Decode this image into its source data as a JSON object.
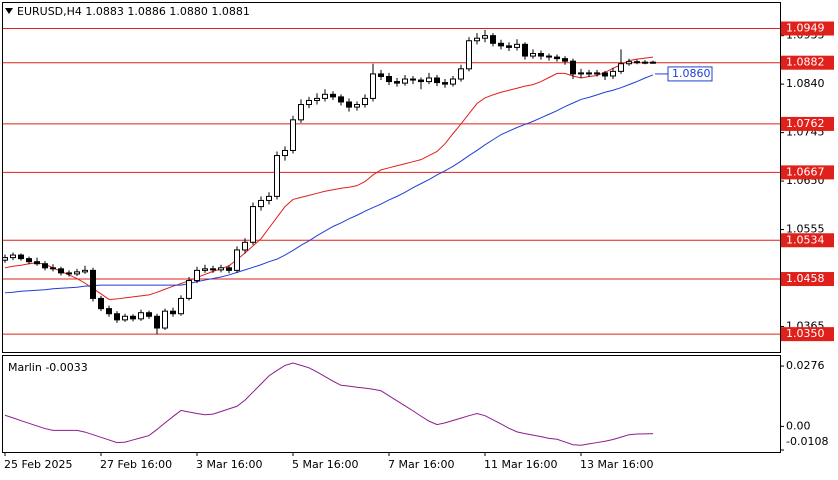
{
  "chart_data": [
    {
      "type": "candlestick",
      "title": "EURUSD,H4 1.0883 1.0886 1.0880 1.0881",
      "categories": [
        "25 Feb 2025",
        null,
        null,
        null,
        null,
        null,
        null,
        null,
        null,
        null,
        null,
        null,
        "27 Feb 16:00",
        null,
        null,
        null,
        null,
        null,
        null,
        null,
        null,
        null,
        null,
        null,
        "3 Mar 16:00",
        null,
        null,
        null,
        null,
        null,
        null,
        null,
        null,
        null,
        null,
        null,
        "5 Mar 16:00",
        null,
        null,
        null,
        null,
        null,
        null,
        null,
        null,
        null,
        null,
        null,
        "7 Mar 16:00",
        null,
        null,
        null,
        null,
        null,
        null,
        null,
        null,
        null,
        null,
        null,
        "11 Mar 16:00",
        null,
        null,
        null,
        null,
        null,
        null,
        null,
        null,
        null,
        null,
        null,
        "13 Mar 16:00",
        null,
        null,
        null,
        null,
        null,
        null,
        null,
        null,
        null
      ],
      "ohlc": [
        [
          1.0495,
          1.0506,
          1.049,
          1.05
        ],
        [
          1.05,
          1.051,
          1.0495,
          1.0505
        ],
        [
          1.0505,
          1.0508,
          1.0494,
          1.0498
        ],
        [
          1.0498,
          1.0502,
          1.0487,
          1.0492
        ],
        [
          1.0492,
          1.05,
          1.0484,
          1.0488
        ],
        [
          1.0488,
          1.0493,
          1.0475,
          1.048
        ],
        [
          1.048,
          1.0487,
          1.0473,
          1.0478
        ],
        [
          1.0478,
          1.0482,
          1.0465,
          1.047
        ],
        [
          1.047,
          1.0475,
          1.0463,
          1.0468
        ],
        [
          1.0468,
          1.0478,
          1.0464,
          1.0472
        ],
        [
          1.0472,
          1.0484,
          1.0468,
          1.0475
        ],
        [
          1.0475,
          1.048,
          1.0414,
          1.042
        ],
        [
          1.042,
          1.0425,
          1.0395,
          1.04
        ],
        [
          1.04,
          1.0406,
          1.0384,
          1.039
        ],
        [
          1.039,
          1.0395,
          1.0372,
          1.0378
        ],
        [
          1.0378,
          1.039,
          1.0374,
          1.0385
        ],
        [
          1.0385,
          1.0389,
          1.0375,
          1.038
        ],
        [
          1.038,
          1.0398,
          1.0376,
          1.0392
        ],
        [
          1.0392,
          1.0396,
          1.038,
          1.0385
        ],
        [
          1.0385,
          1.039,
          1.035,
          1.0362
        ],
        [
          1.0362,
          1.04,
          1.0358,
          1.0395
        ],
        [
          1.0395,
          1.0402,
          1.0384,
          1.039
        ],
        [
          1.039,
          1.0426,
          1.0386,
          1.042
        ],
        [
          1.042,
          1.0462,
          1.0416,
          1.0455
        ],
        [
          1.0455,
          1.0482,
          1.045,
          1.0475
        ],
        [
          1.0475,
          1.0486,
          1.047,
          1.0478
        ],
        [
          1.0478,
          1.0484,
          1.047,
          1.0476
        ],
        [
          1.0476,
          1.0486,
          1.0471,
          1.048
        ],
        [
          1.048,
          1.0485,
          1.0469,
          1.0475
        ],
        [
          1.0475,
          1.0522,
          1.047,
          1.0515
        ],
        [
          1.0515,
          1.0538,
          1.0508,
          1.053
        ],
        [
          1.053,
          1.0608,
          1.0525,
          1.06
        ],
        [
          1.06,
          1.062,
          1.0592,
          1.0612
        ],
        [
          1.0612,
          1.0628,
          1.0604,
          1.062
        ],
        [
          1.062,
          1.0708,
          1.0614,
          1.07
        ],
        [
          1.07,
          1.0718,
          1.069,
          1.071
        ],
        [
          1.071,
          1.0778,
          1.0704,
          1.077
        ],
        [
          1.077,
          1.081,
          1.0764,
          1.08
        ],
        [
          1.08,
          1.0815,
          1.0793,
          1.0808
        ],
        [
          1.0808,
          1.0822,
          1.08,
          1.0812
        ],
        [
          1.0812,
          1.083,
          1.0806,
          1.082
        ],
        [
          1.082,
          1.0826,
          1.0809,
          1.0815
        ],
        [
          1.0815,
          1.082,
          1.0798,
          1.0805
        ],
        [
          1.0805,
          1.0812,
          1.0786,
          1.0795
        ],
        [
          1.0795,
          1.0806,
          1.0788,
          1.08
        ],
        [
          1.08,
          1.082,
          1.0794,
          1.0812
        ],
        [
          1.0812,
          1.088,
          1.0806,
          1.086
        ],
        [
          1.086,
          1.0868,
          1.0848,
          1.0855
        ],
        [
          1.0855,
          1.0862,
          1.0838,
          1.0845
        ],
        [
          1.0845,
          1.0852,
          1.0835,
          1.0842
        ],
        [
          1.0842,
          1.0858,
          1.0837,
          1.085
        ],
        [
          1.085,
          1.0856,
          1.084,
          1.0848
        ],
        [
          1.0848,
          1.0853,
          1.083,
          1.0845
        ],
        [
          1.0845,
          1.0862,
          1.084,
          1.0852
        ],
        [
          1.0852,
          1.0858,
          1.0836,
          1.0843
        ],
        [
          1.0843,
          1.085,
          1.0833,
          1.084
        ],
        [
          1.084,
          1.0856,
          1.0835,
          1.085
        ],
        [
          1.085,
          1.0878,
          1.0845,
          1.087
        ],
        [
          1.087,
          1.0932,
          1.0865,
          1.0925
        ],
        [
          1.0925,
          1.094,
          1.0918,
          1.093
        ],
        [
          1.093,
          1.0946,
          1.0922,
          1.0935
        ],
        [
          1.0935,
          1.094,
          1.0914,
          1.092
        ],
        [
          1.092,
          1.0927,
          1.0908,
          1.0915
        ],
        [
          1.0915,
          1.0922,
          1.0905,
          1.0912
        ],
        [
          1.0912,
          1.0928,
          1.0906,
          1.0918
        ],
        [
          1.0918,
          1.0922,
          1.0888,
          1.0895
        ],
        [
          1.0895,
          1.0908,
          1.089,
          1.09
        ],
        [
          1.09,
          1.0906,
          1.0888,
          1.0895
        ],
        [
          1.0895,
          1.09,
          1.0886,
          1.0893
        ],
        [
          1.0893,
          1.0898,
          1.0884,
          1.089
        ],
        [
          1.089,
          1.0895,
          1.0878,
          1.0885
        ],
        [
          1.0885,
          1.089,
          1.085,
          1.086
        ],
        [
          1.086,
          1.087,
          1.0852,
          1.0862
        ],
        [
          1.0862,
          1.0868,
          1.0854,
          1.086
        ],
        [
          1.086,
          1.0868,
          1.0855,
          1.0862
        ],
        [
          1.0862,
          1.0866,
          1.0848,
          1.0856
        ],
        [
          1.0856,
          1.0872,
          1.085,
          1.0865
        ],
        [
          1.0865,
          1.0908,
          1.086,
          1.088
        ],
        [
          1.088,
          1.089,
          1.0876,
          1.0884
        ],
        [
          1.0884,
          1.0888,
          1.0879,
          1.0883
        ],
        [
          1.0883,
          1.0887,
          1.0879,
          1.0883
        ],
        [
          1.0883,
          1.0886,
          1.088,
          1.0881
        ]
      ],
      "series": [
        {
          "color": "#e0201a",
          "values": [
            1.048,
            1.0483,
            1.0485,
            1.0488,
            1.049,
            1.0487,
            1.048,
            1.0473,
            1.0466,
            1.0459,
            1.045,
            1.0439,
            1.0429,
            1.0418,
            1.0419,
            1.0421,
            1.0423,
            1.0425,
            1.0427,
            1.0432,
            1.0438,
            1.0444,
            1.0449,
            1.0455,
            1.0461,
            1.0467,
            1.0473,
            1.0478,
            1.0484,
            1.0496,
            1.0509,
            1.0523,
            1.0537,
            1.0558,
            1.0579,
            1.06,
            1.0614,
            1.0618,
            1.0622,
            1.0626,
            1.063,
            1.0633,
            1.0636,
            1.0638,
            1.0641,
            1.0649,
            1.0662,
            1.0672,
            1.0676,
            1.068,
            1.0684,
            1.0688,
            1.0692,
            1.07,
            1.0708,
            1.0723,
            1.0743,
            1.0762,
            1.0782,
            1.0802,
            1.0813,
            1.0819,
            1.0824,
            1.0828,
            1.0832,
            1.0836,
            1.0839,
            1.0845,
            1.0853,
            1.0861,
            1.0861,
            1.0856,
            1.0852,
            1.0855,
            1.0857,
            1.0863,
            1.0871,
            1.0878,
            1.0886,
            1.0889,
            1.0891,
            1.0893
          ]
        },
        {
          "color": "#1f3fd6",
          "values": [
            1.0431,
            1.0432,
            1.0434,
            1.0435,
            1.0436,
            1.0437,
            1.0439,
            1.044,
            1.0441,
            1.0442,
            1.0444,
            1.0445,
            1.0446,
            1.0446,
            1.0446,
            1.0446,
            1.0446,
            1.0446,
            1.0446,
            1.0446,
            1.0446,
            1.0446,
            1.0446,
            1.0449,
            1.0453,
            1.0456,
            1.0459,
            1.0462,
            1.0466,
            1.0471,
            1.0476,
            1.0481,
            1.0486,
            1.0492,
            1.0497,
            1.0505,
            1.0514,
            1.0524,
            1.0533,
            1.0543,
            1.0552,
            1.0561,
            1.0568,
            1.0576,
            1.0583,
            1.0591,
            1.0598,
            1.0605,
            1.0613,
            1.062,
            1.0628,
            1.0637,
            1.0645,
            1.0653,
            1.0662,
            1.067,
            1.0679,
            1.0689,
            1.07,
            1.071,
            1.0721,
            1.0731,
            1.0741,
            1.0748,
            1.0755,
            1.0761,
            1.0767,
            1.0774,
            1.0781,
            1.0788,
            1.0796,
            1.0803,
            1.081,
            1.0814,
            1.0819,
            1.0824,
            1.0828,
            1.0833,
            1.0839,
            1.0845,
            1.0852,
            1.0858
          ]
        }
      ],
      "series_label": {
        "value": 1.086,
        "label": "1.0860"
      },
      "levels": [
        1.0949,
        1.0882,
        1.0762,
        1.0667,
        1.0534,
        1.0458,
        {
          "value": 1.035,
          "label": "1.0350"
        }
      ],
      "level_color": "#e0201a",
      "ylim": [
        1.0315,
        1.0999
      ],
      "yticks": [
        1.0935,
        {
          "value": 1.084,
          "label": "1.0840"
        },
        1.0745,
        {
          "value": 1.065,
          "label": "1.0650"
        },
        1.0555,
        {
          "value": 1.046,
          "label": "1.0460"
        },
        1.0365
      ]
    },
    {
      "type": "line",
      "title": "Marlin -0.0033",
      "color": "#8e1c8e",
      "values": [
        0.0051,
        0.0039,
        0.0026,
        0.0014,
        0.0002,
        -0.001,
        -0.0018,
        -0.0018,
        -0.0018,
        -0.0018,
        -0.0026,
        -0.0038,
        -0.005,
        -0.0062,
        -0.0074,
        -0.0072,
        -0.0062,
        -0.0052,
        -0.0042,
        -0.0014,
        0.0016,
        0.0045,
        0.0073,
        0.0066,
        0.0059,
        0.0053,
        0.0056,
        0.0068,
        0.008,
        0.0092,
        0.012,
        0.0157,
        0.0194,
        0.0231,
        0.0256,
        0.0279,
        0.029,
        0.0279,
        0.0268,
        0.0249,
        0.0228,
        0.0207,
        0.0188,
        0.0184,
        0.0179,
        0.0175,
        0.017,
        0.0163,
        0.014,
        0.0117,
        0.0094,
        0.0071,
        0.0047,
        0.0024,
        0.0008,
        0.0016,
        0.0027,
        0.0038,
        0.0049,
        0.0059,
        0.0049,
        0.003,
        0.0011,
        -0.0009,
        -0.0025,
        -0.0033,
        -0.004,
        -0.0047,
        -0.0055,
        -0.0059,
        -0.0071,
        -0.0084,
        -0.0086,
        -0.008,
        -0.0074,
        -0.0068,
        -0.006,
        -0.0049,
        -0.0038,
        -0.0035,
        -0.0034,
        -0.0033
      ],
      "ylim": [
        -0.0108,
        0.0322
      ],
      "yticks": [
        0.0276,
        {
          "value": 0,
          "label": "0.00"
        },
        -0.0108
      ]
    }
  ]
}
